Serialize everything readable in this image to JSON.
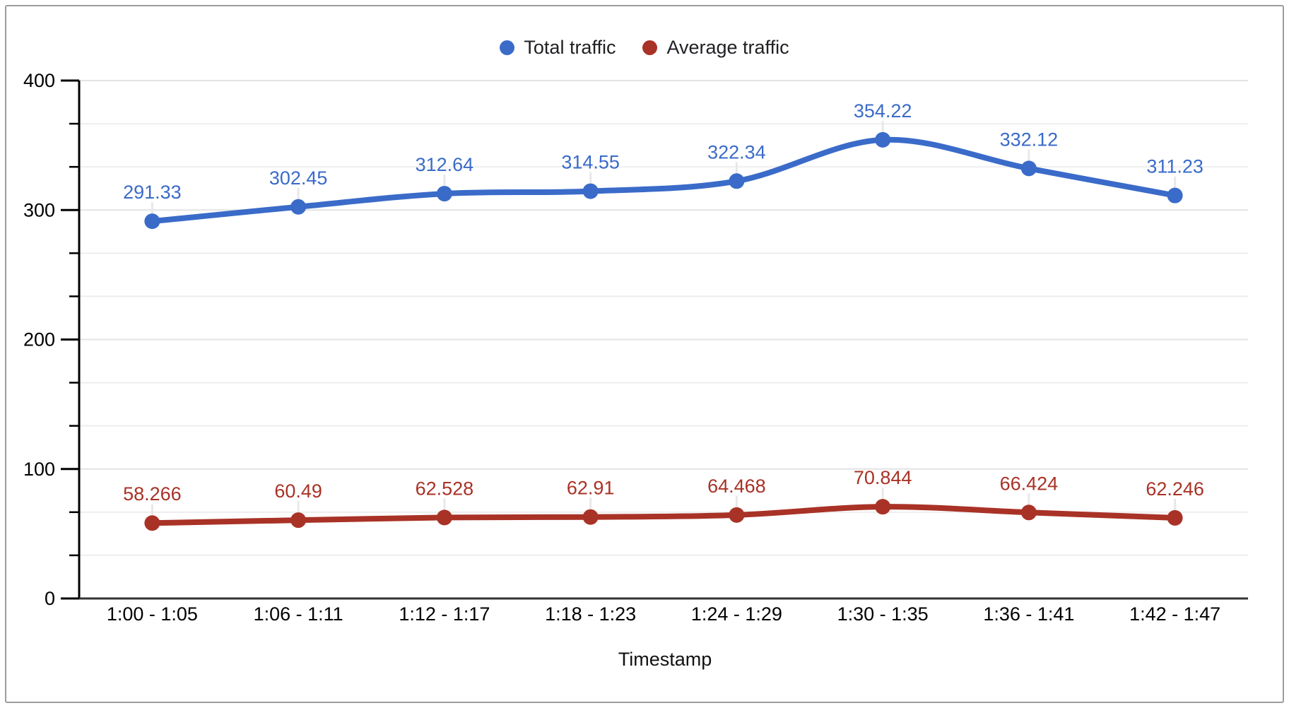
{
  "window": {
    "background": "#ffffff",
    "border_color": "#9d9d9d"
  },
  "chart_data": {
    "type": "line",
    "title": "",
    "xlabel": "Timestamp",
    "ylabel": "",
    "legend_position": "top",
    "grid": true,
    "smooth_lines": true,
    "categories": [
      "1:00 - 1:05",
      "1:06 - 1:11",
      "1:12 - 1:17",
      "1:18 - 1:23",
      "1:24 - 1:29",
      "1:30 - 1:35",
      "1:36 - 1:41",
      "1:42 - 1:47"
    ],
    "series": [
      {
        "name": "Total traffic",
        "color": "#3A6BC9",
        "values": [
          291.33,
          302.45,
          312.64,
          314.55,
          322.34,
          354.22,
          332.12,
          311.23
        ],
        "labels": [
          "291.33",
          "302.45",
          "312.64",
          "314.55",
          "322.34",
          "354.22",
          "332.12",
          "311.23"
        ]
      },
      {
        "name": "Average traffic",
        "color": "#A93226",
        "values": [
          58.266,
          60.49,
          62.528,
          62.91,
          64.468,
          70.844,
          66.424,
          62.246
        ],
        "labels": [
          "58.266",
          "60.49",
          "62.528",
          "62.91",
          "64.468",
          "70.844",
          "66.424",
          "62.246"
        ]
      }
    ],
    "y_axis": {
      "min": 0,
      "max": 400,
      "major_tick_values": [
        0,
        100,
        200,
        300,
        400
      ],
      "major_tick_labels": [
        "0",
        "100",
        "200",
        "300",
        "400"
      ],
      "minor_divisions_per_major": 3
    },
    "colors": {
      "major_gridline": "#e3e3e3",
      "minor_gridline": "#eeeeee",
      "axis_line": "#333333",
      "tick": "#000000",
      "axis_text": "#000000",
      "label_leader": "#e8e8e8"
    }
  }
}
